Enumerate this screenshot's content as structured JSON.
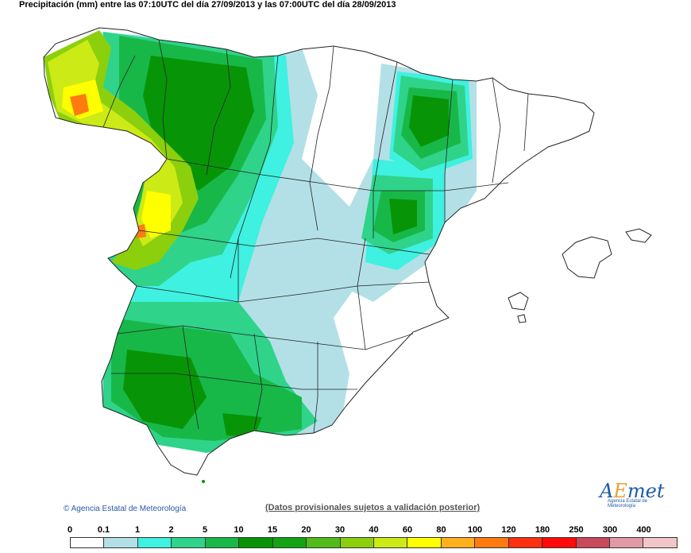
{
  "title": "Precipitación (mm) entre las 07:10UTC del día 27/09/2013 y las 07:00UTC del día 28/09/2013",
  "footer": {
    "copyright": "Agencia Estatal de Meteorología",
    "provisional": "(Datos provisionales sujetos a validación posterior)",
    "logo_text": "AEmet",
    "logo_sub": "Agencia Estatal de Meteorología"
  },
  "legend": {
    "labels": [
      "0",
      "0.1",
      "1",
      "2",
      "5",
      "10",
      "15",
      "20",
      "30",
      "40",
      "60",
      "80",
      "100",
      "120",
      "180",
      "250",
      "300",
      "400"
    ],
    "colors": [
      "#ffffff",
      "#b3e0e6",
      "#3ff1e0",
      "#2fd38a",
      "#18b848",
      "#079507",
      "#12a412",
      "#53bb1b",
      "#8ccf0d",
      "#ccea16",
      "#ffff00",
      "#ffb01c",
      "#ff7b10",
      "#ff3010",
      "#ff0a0a",
      "#c84a5c",
      "#e19aa4",
      "#f2c6c6"
    ]
  },
  "map": {
    "region": "España peninsular y Baleares",
    "colors": {
      "white": "#ffffff",
      "pale": "#b3e0e6",
      "cyan": "#3ff1e0",
      "mint": "#2fd38a",
      "green": "#18b848",
      "dark_green": "#079507",
      "lime": "#8ccf0d",
      "yellow_green": "#ccea16",
      "yellow": "#ffff00",
      "orange": "#ff7b10",
      "border": "#222222"
    }
  }
}
